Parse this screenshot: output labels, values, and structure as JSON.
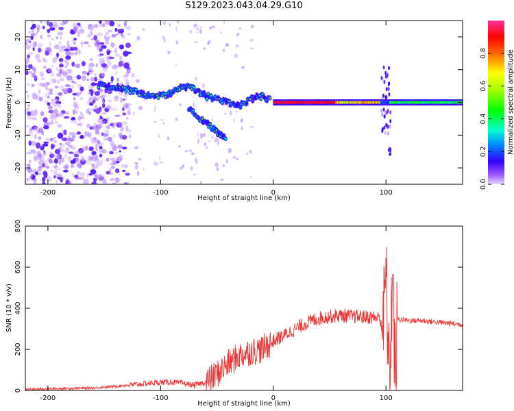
{
  "title": "S129.2023.043.04.29.G10",
  "chart_data": [
    {
      "type": "heatmap",
      "xlabel": "Height of straight line (km)",
      "ylabel": "Frequency (Hz)",
      "xlim": [
        -220,
        168
      ],
      "ylim": [
        -25,
        25
      ],
      "xticks": [
        -200,
        -100,
        0,
        100
      ],
      "yticks": [
        -20,
        -10,
        0,
        10,
        20
      ],
      "colorbar": {
        "label": "Normalized spectral amplitude",
        "ticks": [
          0.0,
          0.2,
          0.4,
          0.6,
          0.8
        ],
        "range": [
          0,
          1
        ]
      },
      "ridge": [
        [
          -150,
          5
        ],
        [
          -140,
          4.5
        ],
        [
          -130,
          4
        ],
        [
          -120,
          3
        ],
        [
          -110,
          2
        ],
        [
          -100,
          2
        ],
        [
          -90,
          3
        ],
        [
          -80,
          5
        ],
        [
          -70,
          4
        ],
        [
          -60,
          2
        ],
        [
          -50,
          1
        ],
        [
          -40,
          0
        ],
        [
          -30,
          -1
        ],
        [
          -20,
          1
        ],
        [
          -10,
          2
        ],
        [
          0,
          0
        ],
        [
          50,
          0
        ],
        [
          100,
          0
        ],
        [
          168,
          0
        ]
      ]
    },
    {
      "type": "line",
      "xlabel": "Height of straight line (km)",
      "ylabel": "SNR (10 * v/v)",
      "xlim": [
        -220,
        168
      ],
      "ylim": [
        0,
        800
      ],
      "xticks": [
        -200,
        -100,
        0,
        100
      ],
      "yticks": [
        0,
        200,
        400,
        600,
        800
      ],
      "series": [
        {
          "color": "#ee3333",
          "x": [
            -220,
            -200,
            -180,
            -160,
            -140,
            -120,
            -100,
            -90,
            -80,
            -70,
            -60,
            -50,
            -40,
            -30,
            -20,
            -10,
            0,
            10,
            20,
            30,
            40,
            50,
            60,
            70,
            80,
            90,
            98,
            100,
            103,
            106,
            108,
            110,
            115,
            120,
            130,
            140,
            150,
            160,
            168
          ],
          "values": [
            5,
            8,
            10,
            12,
            20,
            30,
            40,
            40,
            35,
            25,
            40,
            80,
            130,
            170,
            190,
            200,
            240,
            270,
            300,
            330,
            350,
            360,
            365,
            360,
            358,
            355,
            350,
            580,
            30,
            600,
            50,
            345,
            345,
            340,
            340,
            335,
            330,
            325,
            320
          ]
        }
      ]
    }
  ]
}
